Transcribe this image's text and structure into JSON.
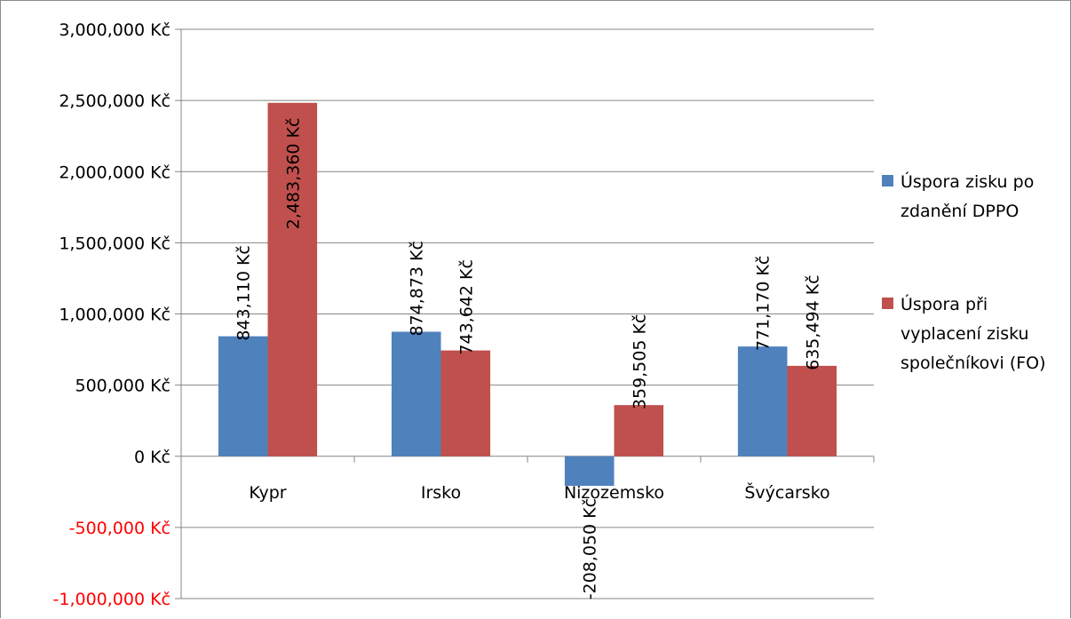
{
  "chart_data": {
    "type": "bar",
    "categories": [
      "Kypr",
      "Irsko",
      "Nizozemsko",
      "Švýcarsko"
    ],
    "series": [
      {
        "name": "Úspora zisku po zdanění DPPO",
        "name_lines": [
          "Úspora zisku po",
          "zdanění DPPO"
        ],
        "color": "#4f81bd",
        "values": [
          843110,
          874873,
          -208050,
          771170
        ],
        "labels": [
          "843,110 Kč",
          "874,873 Kč",
          "-208,050 Kč",
          "771,170 Kč"
        ]
      },
      {
        "name": "Úspora při vyplacení zisku společníkovi (FO)",
        "name_lines": [
          "Úspora při",
          "vyplacení zisku",
          "společníkovi (FO)"
        ],
        "color": "#c0504d",
        "values": [
          2483360,
          743642,
          359505,
          635494
        ],
        "labels": [
          "2,483,360 Kč",
          "743,642 Kč",
          "359,505 Kč",
          "635,494 Kč"
        ]
      }
    ],
    "y_ticks": [
      3000000,
      2500000,
      2000000,
      1500000,
      1000000,
      500000,
      0,
      -500000,
      -1000000
    ],
    "y_tick_labels": [
      "3,000,000 Kč",
      "2,500,000 Kč",
      "2,000,000 Kč",
      "1,500,000 Kč",
      "1,000,000 Kč",
      "500,000 Kč",
      "0 Kč",
      "-500,000 Kč",
      "-1,000,000 Kč"
    ],
    "ylim": [
      -1000000,
      3000000
    ],
    "grid": true,
    "legend_position": "right",
    "negative_label_color": "#ff0000",
    "title": "",
    "xlabel": "",
    "ylabel": ""
  }
}
